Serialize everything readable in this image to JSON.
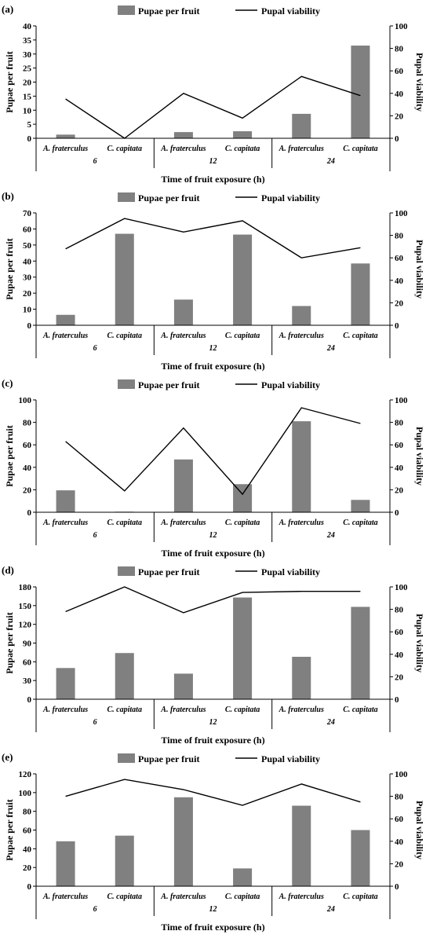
{
  "chart_data": [
    {
      "type": "bar",
      "panel_label": "(a)",
      "categories": [
        "A. fraterculus",
        "C. capitata",
        "A. fraterculus",
        "C. capitata",
        "A. fraterculus",
        "C. capitata"
      ],
      "groups": [
        "6",
        "12",
        "24"
      ],
      "series": [
        {
          "name": "Pupae per fruit",
          "type": "bar",
          "axis": "left",
          "color": "#808080",
          "values": [
            1.3,
            0,
            2.2,
            2.5,
            8.7,
            33
          ]
        },
        {
          "name": "Pupal viability",
          "type": "line",
          "axis": "right",
          "color": "#000000",
          "values": [
            35,
            0,
            40,
            18,
            55,
            38
          ]
        }
      ],
      "ylabel": "Pupae per fruit",
      "y2label": "Pupal viability",
      "xlabel": "Time of fruit exposure (h)",
      "ylim": [
        0,
        40
      ],
      "yticks": [
        0,
        5,
        10,
        15,
        20,
        25,
        30,
        35,
        40
      ],
      "y2lim": [
        0,
        100
      ],
      "y2ticks": [
        0,
        20,
        40,
        60,
        80,
        100
      ],
      "legend": "top-center",
      "grid": false
    },
    {
      "type": "bar",
      "panel_label": "(b)",
      "categories": [
        "A. fraterculus",
        "C. capitata",
        "A. fraterculus",
        "C. capitata",
        "A. fraterculus",
        "C. capitata"
      ],
      "groups": [
        "6",
        "12",
        "24"
      ],
      "series": [
        {
          "name": "Pupae per fruit",
          "type": "bar",
          "axis": "left",
          "color": "#808080",
          "values": [
            6.5,
            57,
            16,
            56.5,
            12,
            38.5
          ]
        },
        {
          "name": "Pupal viability",
          "type": "line",
          "axis": "right",
          "color": "#000000",
          "values": [
            68,
            95,
            83,
            93,
            60,
            69
          ]
        }
      ],
      "ylabel": "Pupae per fruit",
      "y2label": "Pupal viability",
      "xlabel": "Time of fruit exposure (h)",
      "ylim": [
        0,
        70
      ],
      "yticks": [
        0,
        10,
        20,
        30,
        40,
        50,
        60,
        70
      ],
      "y2lim": [
        0,
        100
      ],
      "y2ticks": [
        0,
        20,
        40,
        60,
        80,
        100
      ],
      "legend": "top-center",
      "grid": false
    },
    {
      "type": "bar",
      "panel_label": "(c)",
      "categories": [
        "A. fraterculus",
        "C. capitata",
        "A. fraterculus",
        "C. capitata",
        "A. fraterculus",
        "C. capitata"
      ],
      "groups": [
        "6",
        "12",
        "24"
      ],
      "series": [
        {
          "name": "Pupae per fruit",
          "type": "bar",
          "axis": "left",
          "color": "#808080",
          "values": [
            19.5,
            0.5,
            47,
            25,
            81,
            11
          ]
        },
        {
          "name": "Pupal viability",
          "type": "line",
          "axis": "right",
          "color": "#000000",
          "values": [
            63,
            19,
            75,
            16,
            93,
            79
          ]
        }
      ],
      "ylabel": "Pupae per fruit",
      "y2label": "Pupal viability",
      "xlabel": "Time of fruit exposure (h)",
      "ylim": [
        0,
        100
      ],
      "yticks": [
        0,
        20,
        40,
        60,
        80,
        100
      ],
      "y2lim": [
        0,
        100
      ],
      "y2ticks": [
        0,
        20,
        40,
        60,
        80,
        100
      ],
      "legend": "top-center",
      "grid": false
    },
    {
      "type": "bar",
      "panel_label": "(d)",
      "categories": [
        "A. fraterculus",
        "C. capitata",
        "A. fraterculus",
        "C. capitata",
        "A. fraterculus",
        "C. capitata"
      ],
      "groups": [
        "6",
        "12",
        "24"
      ],
      "series": [
        {
          "name": "Pupae per fruit",
          "type": "bar",
          "axis": "left",
          "color": "#808080",
          "values": [
            50,
            74,
            41,
            163,
            68,
            148
          ]
        },
        {
          "name": "Pupal viability",
          "type": "line",
          "axis": "right",
          "color": "#000000",
          "values": [
            78,
            100,
            77,
            95,
            96,
            96
          ]
        }
      ],
      "ylabel": "Pupae per fruit",
      "y2label": "Pupal viability",
      "xlabel": "Time of fruit exposure (h)",
      "ylim": [
        0,
        180
      ],
      "yticks": [
        0,
        30,
        60,
        90,
        120,
        150,
        180
      ],
      "y2lim": [
        0,
        100
      ],
      "y2ticks": [
        0,
        20,
        40,
        60,
        80,
        100
      ],
      "legend": "top-center",
      "grid": false
    },
    {
      "type": "bar",
      "panel_label": "(e)",
      "categories": [
        "A. fraterculus",
        "C. capitata",
        "A. fraterculus",
        "C. capitata",
        "A. fraterculus",
        "C. capitata"
      ],
      "groups": [
        "6",
        "12",
        "24"
      ],
      "series": [
        {
          "name": "Pupae per fruit",
          "type": "bar",
          "axis": "left",
          "color": "#808080",
          "values": [
            48,
            54,
            95,
            19,
            86,
            60
          ]
        },
        {
          "name": "Pupal viability",
          "type": "line",
          "axis": "right",
          "color": "#000000",
          "values": [
            80,
            95,
            86,
            72,
            91,
            75
          ]
        }
      ],
      "ylabel": "Pupae per fruit",
      "y2label": "Pupal viability",
      "xlabel": "Time of fruit exposure (h)",
      "ylim": [
        0,
        120
      ],
      "yticks": [
        0,
        20,
        40,
        60,
        80,
        100,
        120
      ],
      "y2lim": [
        0,
        100
      ],
      "y2ticks": [
        0,
        20,
        40,
        60,
        80,
        100
      ],
      "legend": "top-center",
      "grid": false
    }
  ]
}
